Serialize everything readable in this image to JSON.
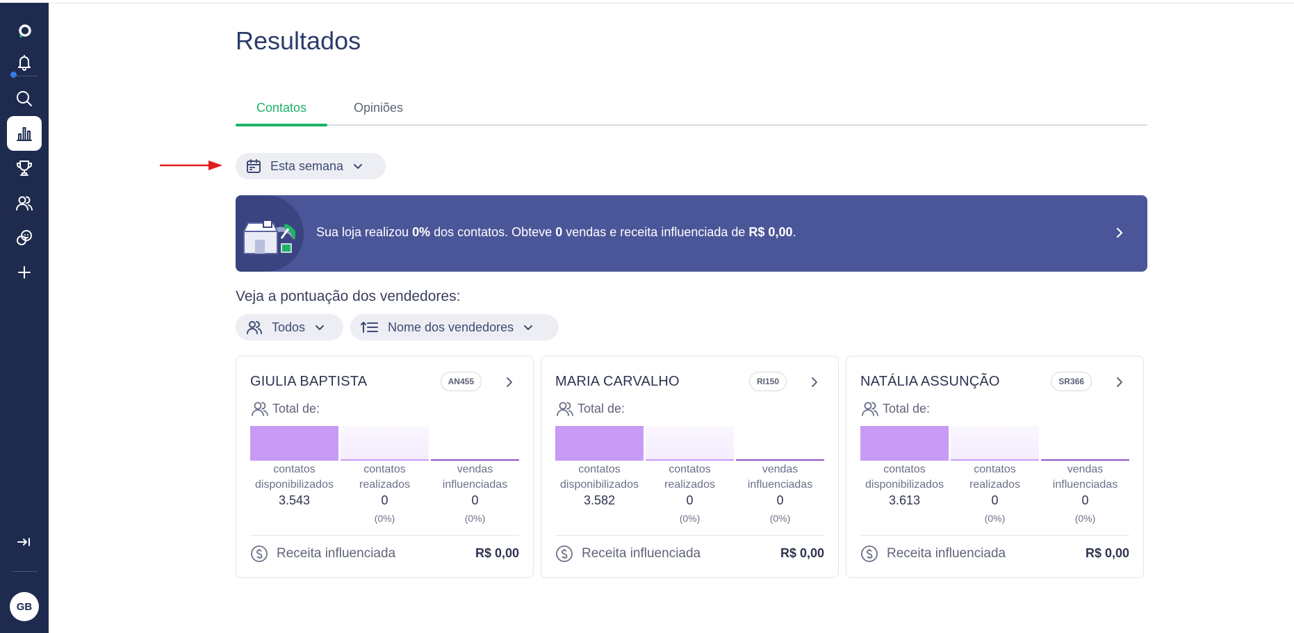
{
  "page": {
    "title": "Resultados"
  },
  "tabs": [
    {
      "label": "Contatos",
      "active": true
    },
    {
      "label": "Opiniões",
      "active": false
    }
  ],
  "filters": {
    "period": "Esta semana",
    "group": "Todos",
    "sort": "Nome dos vendedores"
  },
  "banner": {
    "prefix": "Sua loja realizou ",
    "percent": "0%",
    "middle1": " dos contatos. Obteve ",
    "sales": "0",
    "middle2": " vendas e receita influenciada de ",
    "revenue": "R$ 0,00",
    "suffix": "."
  },
  "section_title": "Veja a pontuação dos vendedores:",
  "card_labels": {
    "total": "Total de:",
    "metric1_line1": "contatos",
    "metric1_line2": "disponibilizados",
    "metric2_line1": "contatos",
    "metric2_line2": "realizados",
    "metric3_line1": "vendas",
    "metric3_line2": "influenciadas",
    "revenue": "Receita influenciada"
  },
  "sellers": [
    {
      "name": "GIULIA BAPTISTA",
      "code": "AN455",
      "disponibilizados": "3.543",
      "realizados": "0",
      "realizados_pct": "(0%)",
      "vendas": "0",
      "vendas_pct": "(0%)",
      "receita": "R$ 0,00"
    },
    {
      "name": "MARIA CARVALHO",
      "code": "RI150",
      "disponibilizados": "3.582",
      "realizados": "0",
      "realizados_pct": "(0%)",
      "vendas": "0",
      "vendas_pct": "(0%)",
      "receita": "R$ 0,00"
    },
    {
      "name": "NATÁLIA ASSUNÇÃO",
      "code": "SR366",
      "disponibilizados": "3.613",
      "realizados": "0",
      "realizados_pct": "(0%)",
      "vendas": "0",
      "vendas_pct": "(0%)",
      "receita": "R$ 0,00"
    }
  ],
  "user": {
    "initials": "GB"
  },
  "colors": {
    "sidebar": "#1e2a4e",
    "accent": "#1db368",
    "banner": "#4b5699",
    "bar": "#c79af5"
  },
  "icons": [
    "logo-icon",
    "bell-icon",
    "search-icon",
    "chart-icon",
    "trophy-icon",
    "users-icon",
    "chat-icon",
    "plus-icon",
    "collapse-icon"
  ]
}
